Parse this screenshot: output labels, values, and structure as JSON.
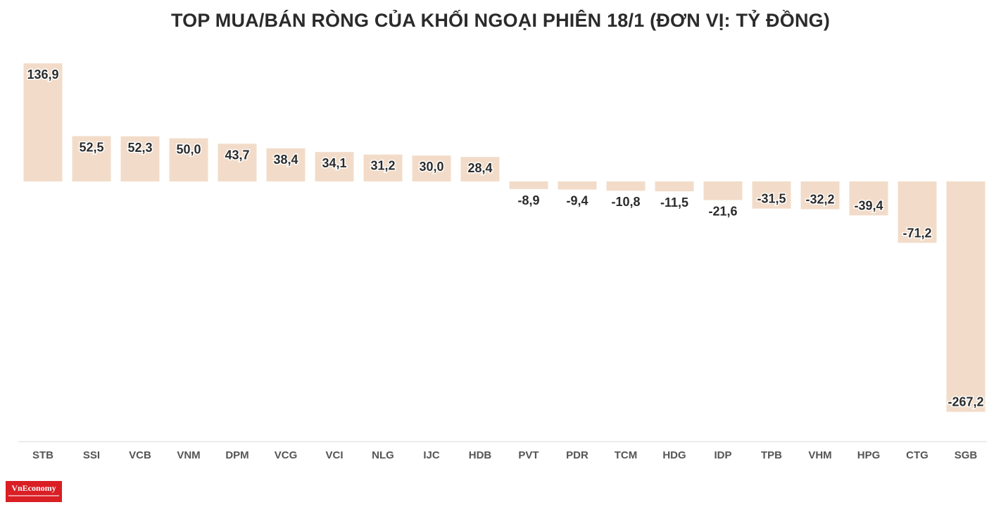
{
  "chart_data": {
    "type": "bar",
    "title": "TOP MUA/BÁN RÒNG CỦA KHỐI NGOẠI PHIÊN 18/1 (ĐƠN VỊ: TỶ ĐỒNG)",
    "categories": [
      "STB",
      "SSI",
      "VCB",
      "VNM",
      "DPM",
      "VCG",
      "VCI",
      "NLG",
      "IJC",
      "HDB",
      "PVT",
      "PDR",
      "TCM",
      "HDG",
      "IDP",
      "TPB",
      "VHM",
      "HPG",
      "CTG",
      "SGB"
    ],
    "values": [
      136.9,
      52.5,
      52.3,
      50.0,
      43.7,
      38.4,
      34.1,
      31.2,
      30.0,
      28.4,
      -8.9,
      -9.4,
      -10.8,
      -11.5,
      -21.6,
      -31.5,
      -32.2,
      -39.4,
      -71.2,
      -267.2
    ],
    "labels": [
      "136,9",
      "52,5",
      "52,3",
      "50,0",
      "43,7",
      "38,4",
      "34,1",
      "31,2",
      "30,0",
      "28,4",
      "-8,9",
      "-9,4",
      "-10,8",
      "-11,5",
      "-21,6",
      "-31,5",
      "-32,2",
      "-39,4",
      "-71,2",
      "-267,2"
    ],
    "ylim": [
      -300,
      140
    ],
    "bar_color": "#f2dcc9",
    "axis_color": "#d9d9d9",
    "label_color": "#2b2b2b",
    "tick_color": "#555555",
    "grid": false,
    "xlabel": "",
    "ylabel": ""
  },
  "logo": {
    "text": "VnEconomy"
  }
}
